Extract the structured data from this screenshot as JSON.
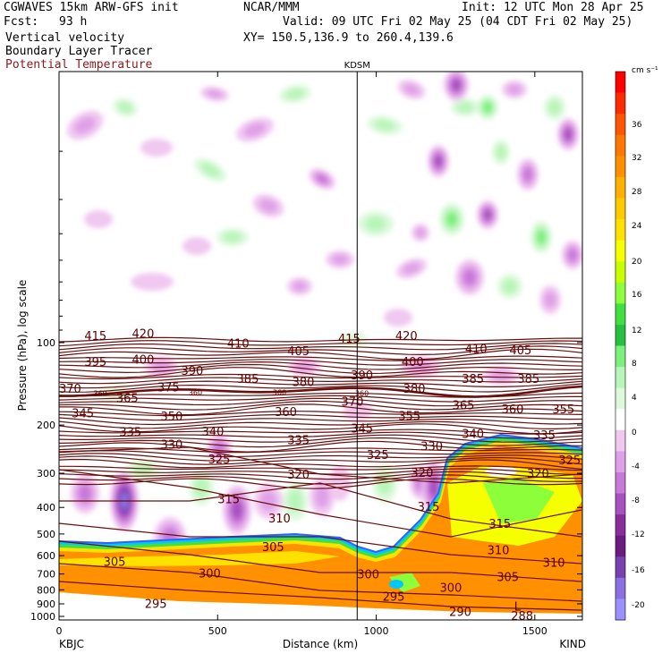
{
  "header": {
    "model": "CGWAVES 15km ARW-GFS init",
    "org": "NCAR/MMM",
    "init": "Init: 12 UTC Mon 28 Apr 25",
    "fcst_label": "Fcst:",
    "fcst_value": "93 h",
    "valid": "Valid: 09 UTC Fri 02 May 25 (04 CDT Fri 02 May 25)",
    "field1": "Vertical velocity",
    "field2": "Boundary Layer Tracer",
    "field3": "Potential Temperature",
    "field3_color": "#8b1a1a",
    "xy": "XY= 150.5,136.9 to 260.4,139.6"
  },
  "chart_data": {
    "type": "heatmap",
    "xlabel": "Distance (km)",
    "ylabel": "Pressure (hPa), log scale",
    "xlim": [
      0,
      1650
    ],
    "ylim_hpa": [
      1000,
      10
    ],
    "x_ticks": [
      0,
      500,
      1000,
      1500
    ],
    "y_ticks": [
      100,
      200,
      300,
      400,
      500,
      600,
      700,
      800,
      900,
      1000
    ],
    "station_left": "KBJC",
    "station_right": "KIND",
    "station_mid": "KDSM",
    "station_mid_km": 940,
    "colorbar_unit": "cm s⁻¹",
    "colorbar_ticks": [
      "36",
      "32",
      "28",
      "24",
      "20",
      "16",
      "12",
      "8",
      "4",
      "0",
      "-4",
      "-8",
      "-12",
      "-16",
      "-20"
    ],
    "colorbar_colors": [
      "#ff0000",
      "#ff2a00",
      "#ff5500",
      "#ff7700",
      "#ff9000",
      "#ffb000",
      "#ffc900",
      "#ffe100",
      "#f5ff00",
      "#c8ff00",
      "#8dff3a",
      "#40e040",
      "#27c040",
      "#7bf07b",
      "#b8f5b8",
      "#dcf9dc",
      "#ffffff",
      "#f0c8f0",
      "#e0a0e8",
      "#c878d8",
      "#a850c0",
      "#8a2b9e",
      "#6a1a80",
      "#7a40b0",
      "#8a70e0",
      "#9a90ff"
    ],
    "theta_labels": [
      {
        "t": "415",
        "x": 115,
        "p": 95
      },
      {
        "t": "420",
        "x": 265,
        "p": 93
      },
      {
        "t": "415",
        "x": 915,
        "p": 97
      },
      {
        "t": "420",
        "x": 1095,
        "p": 95
      },
      {
        "t": "410",
        "x": 565,
        "p": 101
      },
      {
        "t": "405",
        "x": 755,
        "p": 108
      },
      {
        "t": "410",
        "x": 1315,
        "p": 106
      },
      {
        "t": "405",
        "x": 1455,
        "p": 107
      },
      {
        "t": "395",
        "x": 115,
        "p": 118
      },
      {
        "t": "400",
        "x": 265,
        "p": 116
      },
      {
        "t": "390",
        "x": 420,
        "p": 127
      },
      {
        "t": "385",
        "x": 595,
        "p": 136
      },
      {
        "t": "380",
        "x": 770,
        "p": 140
      },
      {
        "t": "390",
        "x": 955,
        "p": 132
      },
      {
        "t": "400",
        "x": 1115,
        "p": 118
      },
      {
        "t": "385",
        "x": 1305,
        "p": 136
      },
      {
        "t": "385",
        "x": 1480,
        "p": 136
      },
      {
        "t": "370",
        "x": 35,
        "p": 148
      },
      {
        "t": "375",
        "x": 345,
        "p": 146
      },
      {
        "t": "380",
        "x": 1120,
        "p": 148
      },
      {
        "t": "365",
        "x": 215,
        "p": 160
      },
      {
        "t": "370",
        "x": 925,
        "p": 165
      },
      {
        "t": "360",
        "x": 715,
        "p": 180
      },
      {
        "t": "365",
        "x": 1275,
        "p": 170
      },
      {
        "t": "360",
        "x": 1430,
        "p": 176
      },
      {
        "t": "355",
        "x": 1590,
        "p": 176
      },
      {
        "t": "345",
        "x": 75,
        "p": 182
      },
      {
        "t": "350",
        "x": 355,
        "p": 187
      },
      {
        "t": "355",
        "x": 1105,
        "p": 186
      },
      {
        "t": "345",
        "x": 955,
        "p": 207
      },
      {
        "t": "335",
        "x": 225,
        "p": 213
      },
      {
        "t": "340",
        "x": 485,
        "p": 212
      },
      {
        "t": "340",
        "x": 1305,
        "p": 216
      },
      {
        "t": "335",
        "x": 755,
        "p": 228
      },
      {
        "t": "335",
        "x": 1530,
        "p": 219
      },
      {
        "t": "330",
        "x": 355,
        "p": 237
      },
      {
        "t": "330",
        "x": 1175,
        "p": 240
      },
      {
        "t": "325",
        "x": 505,
        "p": 268
      },
      {
        "t": "325",
        "x": 1005,
        "p": 258
      },
      {
        "t": "325",
        "x": 1610,
        "p": 270
      },
      {
        "t": "320",
        "x": 755,
        "p": 305
      },
      {
        "t": "320",
        "x": 1145,
        "p": 300
      },
      {
        "t": "320",
        "x": 1510,
        "p": 302
      },
      {
        "t": "315",
        "x": 535,
        "p": 375
      },
      {
        "t": "315",
        "x": 1165,
        "p": 400
      },
      {
        "t": "310",
        "x": 695,
        "p": 440
      },
      {
        "t": "315",
        "x": 1390,
        "p": 460
      },
      {
        "t": "305",
        "x": 675,
        "p": 560
      },
      {
        "t": "310",
        "x": 1385,
        "p": 575
      },
      {
        "t": "305",
        "x": 175,
        "p": 635
      },
      {
        "t": "310",
        "x": 1560,
        "p": 640
      },
      {
        "t": "300",
        "x": 475,
        "p": 700
      },
      {
        "t": "300",
        "x": 975,
        "p": 705
      },
      {
        "t": "305",
        "x": 1415,
        "p": 720
      },
      {
        "t": "300",
        "x": 1235,
        "p": 790
      },
      {
        "t": "295",
        "x": 1055,
        "p": 850
      },
      {
        "t": "295",
        "x": 305,
        "p": 905
      },
      {
        "t": "290",
        "x": 1265,
        "p": 965
      },
      {
        "t": "288",
        "x": 1460,
        "p": 1000
      },
      {
        "t": "L",
        "x": 1445,
        "p": 925
      }
    ],
    "small_labels": [
      {
        "t": "360",
        "x": 130,
        "p": 153
      },
      {
        "t": "360",
        "x": 430,
        "p": 152
      },
      {
        "t": "360",
        "x": 695,
        "p": 152
      },
      {
        "t": "360",
        "x": 955,
        "p": 153
      }
    ]
  }
}
